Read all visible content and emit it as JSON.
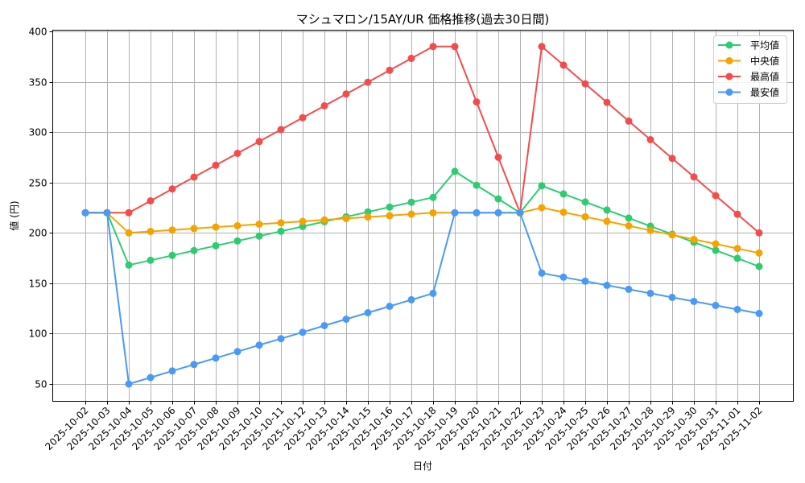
{
  "chart_data": {
    "type": "line",
    "title": "マシュマロン/15AY/UR 価格推移(過去30日間)",
    "xlabel": "日付",
    "ylabel": "値 (円)",
    "ylim": [
      35,
      403
    ],
    "yticks": [
      50,
      100,
      150,
      200,
      250,
      300,
      350,
      400
    ],
    "grid": true,
    "legend_position": "upper right",
    "x": [
      "2025-10-02",
      "2025-10-03",
      "2025-10-04",
      "2025-10-05",
      "2025-10-06",
      "2025-10-07",
      "2025-10-08",
      "2025-10-09",
      "2025-10-10",
      "2025-10-11",
      "2025-10-12",
      "2025-10-13",
      "2025-10-14",
      "2025-10-15",
      "2025-10-16",
      "2025-10-17",
      "2025-10-18",
      "2025-10-19",
      "2025-10-20",
      "2025-10-21",
      "2025-10-22",
      "2025-10-23",
      "2025-10-24",
      "2025-10-25",
      "2025-10-26",
      "2025-10-27",
      "2025-10-28",
      "2025-10-29",
      "2025-10-30",
      "2025-10-31",
      "2025-11-01",
      "2025-11-02"
    ],
    "series": [
      {
        "name": "平均値",
        "color": "#2ecc71",
        "values": [
          220,
          220,
          168,
          172.8,
          177.6,
          182.4,
          187.2,
          192,
          196.8,
          201.6,
          206.4,
          211.2,
          216,
          220.8,
          225.6,
          230.4,
          235.2,
          261,
          247.3,
          233.7,
          220,
          246.7,
          238.7,
          230.7,
          222.7,
          214.7,
          206.7,
          198.7,
          190.7,
          182.7,
          174.7,
          166.7
        ]
      },
      {
        "name": "中央値",
        "color": "#f5a300",
        "values": [
          220,
          220,
          200,
          201.4,
          202.9,
          204.3,
          205.7,
          207.1,
          208.6,
          210,
          211.4,
          212.9,
          214.3,
          215.7,
          217.1,
          218.6,
          220,
          220,
          220,
          220,
          220,
          225,
          220.5,
          216,
          211.5,
          207,
          202.5,
          198,
          193.5,
          189,
          184.5,
          180
        ]
      },
      {
        "name": "最高値",
        "color": "#f44c4c",
        "values": [
          220,
          220,
          220,
          231.8,
          243.6,
          255.4,
          267.1,
          278.9,
          290.7,
          302.5,
          314.3,
          326.1,
          337.9,
          349.6,
          361.4,
          373.2,
          385,
          385,
          330,
          275,
          220,
          385,
          366.5,
          348,
          329.5,
          311,
          292.5,
          274,
          255.5,
          237,
          218.5,
          200
        ]
      },
      {
        "name": "最安値",
        "color": "#4a9af5",
        "values": [
          220,
          220,
          50,
          56.4,
          62.9,
          69.3,
          75.7,
          82.1,
          88.6,
          95,
          101.4,
          107.9,
          114.3,
          120.7,
          127.1,
          133.6,
          140,
          220,
          220,
          220,
          220,
          160,
          156,
          152,
          148,
          144,
          140,
          136,
          132,
          128,
          124,
          120
        ]
      }
    ]
  }
}
